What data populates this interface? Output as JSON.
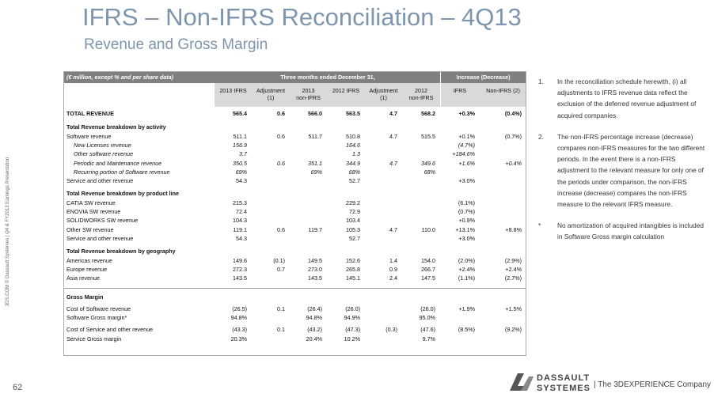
{
  "header": {
    "title": "IFRS – Non-IFRS Reconciliation – 4Q13",
    "subtitle": "Revenue and Gross Margin"
  },
  "side_text": "3DS.COM © Dassault Systèmes | Q4 & FY2013 Earnings Presentation",
  "page_number": "62",
  "table": {
    "caption": "(€ million, except % and per share data)",
    "period_header": "Three months ended December 31,",
    "change_header": "Increase (Decrease)",
    "columns": [
      "2013 IFRS",
      "Adjustment\n(1)",
      "2013\nnon-IFRS",
      "2012 IFRS",
      "Adjustment\n(1)",
      "2012\nnon-IFRS",
      "IFRS",
      "Non-IFRS (2)"
    ],
    "total": {
      "label": "TOTAL REVENUE",
      "cells": [
        "565.4",
        "0.6",
        "566.0",
        "563.5",
        "4.7",
        "568.2",
        "+0.3%",
        "(0.4%)"
      ]
    },
    "sections": [
      {
        "heading": "Total Revenue breakdown by activity",
        "rows": [
          {
            "label": "Software revenue",
            "cells": [
              "511.1",
              "0.6",
              "511.7",
              "510.8",
              "4.7",
              "515.5",
              "+0.1%",
              "(0.7%)"
            ]
          },
          {
            "label": "New Licenses revenue",
            "indent": true,
            "cells": [
              "156.9",
              null,
              null,
              "164.6",
              null,
              null,
              "(4.7%)",
              null
            ]
          },
          {
            "label": "Other software revenue",
            "indent": true,
            "cells": [
              "3.7",
              null,
              null,
              "1.3",
              null,
              null,
              "+184.6%",
              null
            ]
          },
          {
            "label": "Periodic and Maintenance revenue",
            "indent": true,
            "cells": [
              "350.5",
              "0.6",
              "351.1",
              "344.9",
              "4.7",
              "349.6",
              "+1.6%",
              "+0.4%"
            ]
          },
          {
            "label": "Recurring portion of Software revenue",
            "indent": true,
            "cells": [
              "69%",
              null,
              "69%",
              "68%",
              null,
              "68%",
              null,
              null
            ]
          },
          {
            "label": "Service and other revenue",
            "cells": [
              "54.3",
              null,
              null,
              "52.7",
              null,
              null,
              "+3.0%",
              null
            ]
          }
        ]
      },
      {
        "heading": "Total Revenue breakdown by product line",
        "rows": [
          {
            "label": "CATIA SW revenue",
            "cells": [
              "215.3",
              null,
              null,
              "229.2",
              null,
              null,
              "(6.1%)",
              null
            ]
          },
          {
            "label": "ENOVIA SW revenue",
            "cells": [
              "72.4",
              null,
              null,
              "72.9",
              null,
              null,
              "(0.7%)",
              null
            ]
          },
          {
            "label": "SOLIDWORKS SW revenue",
            "cells": [
              "104.3",
              null,
              null,
              "103.4",
              null,
              null,
              "+0.9%",
              null
            ]
          },
          {
            "label": "Other SW revenue",
            "cells": [
              "119.1",
              "0.6",
              "119.7",
              "105.3",
              "4.7",
              "110.0",
              "+13.1%",
              "+8.8%"
            ]
          },
          {
            "label": "Service and other revenue",
            "cells": [
              "54.3",
              null,
              null,
              "52.7",
              null,
              null,
              "+3.0%",
              null
            ]
          }
        ]
      },
      {
        "heading": "Total Revenue breakdown by geography",
        "rows": [
          {
            "label": "Americas revenue",
            "cells": [
              "149.6",
              "(0.1)",
              "149.5",
              "152.6",
              "1.4",
              "154.0",
              "(2.0%)",
              "(2.9%)"
            ]
          },
          {
            "label": "Europe revenue",
            "cells": [
              "272.3",
              "0.7",
              "273.0",
              "265.8",
              "0.9",
              "266.7",
              "+2.4%",
              "+2.4%"
            ]
          },
          {
            "label": "Asia revenue",
            "cells": [
              "143.5",
              null,
              "143.5",
              "145.1",
              "2.4",
              "147.5",
              "(1.1%)",
              "(2.7%)"
            ]
          }
        ]
      },
      {
        "heading": "Gross Margin",
        "rows": [
          {
            "label": "Cost of Software revenue",
            "cells": [
              "(26.5)",
              "0.1",
              "(26.4)",
              "(26.0)",
              null,
              "(26.0)",
              "+1.9%",
              "+1.5%"
            ]
          },
          {
            "label": "Software Gross margin*",
            "cells": [
              "94.8%",
              null,
              "94.8%",
              "94.9%",
              null,
              "95.0%",
              null,
              null
            ]
          },
          {
            "label": "Cost of Service and other revenue",
            "cells": [
              "(43.3)",
              "0.1",
              "(43.2)",
              "(47.3)",
              "(0.3)",
              "(47.6)",
              "(8.5%)",
              "(9.2%)"
            ]
          },
          {
            "label": "Service Gross margin",
            "cells": [
              "20.3%",
              null,
              "20.4%",
              "10.2%",
              null,
              "9.7%",
              null,
              null
            ]
          }
        ]
      }
    ]
  },
  "notes": [
    {
      "marker": "1.",
      "text": "In the reconciliation schedule herewith, (i) all adjustments to IFRS revenue data reflect the exclusion of the deferred revenue adjustment of acquired companies."
    },
    {
      "marker": "2.",
      "text": "The non-IFRS percentage increase (decrease) compares non-IFRS measures for the two different periods. In the event there is a non-IFRS adjustment to the relevant measure for only one of the periods under comparison, the non-IFRS increase (decrease) compares the non-IFRS measure to the relevant IFRS measure."
    },
    {
      "marker": "*",
      "text": "No amortization of acquired intangibles is included in Software Gross margin calculation"
    }
  ],
  "logo": {
    "line1": "DASSAULT",
    "line2": "SYSTEMES",
    "tagline": "| The 3DEXPERIENCE Company"
  }
}
